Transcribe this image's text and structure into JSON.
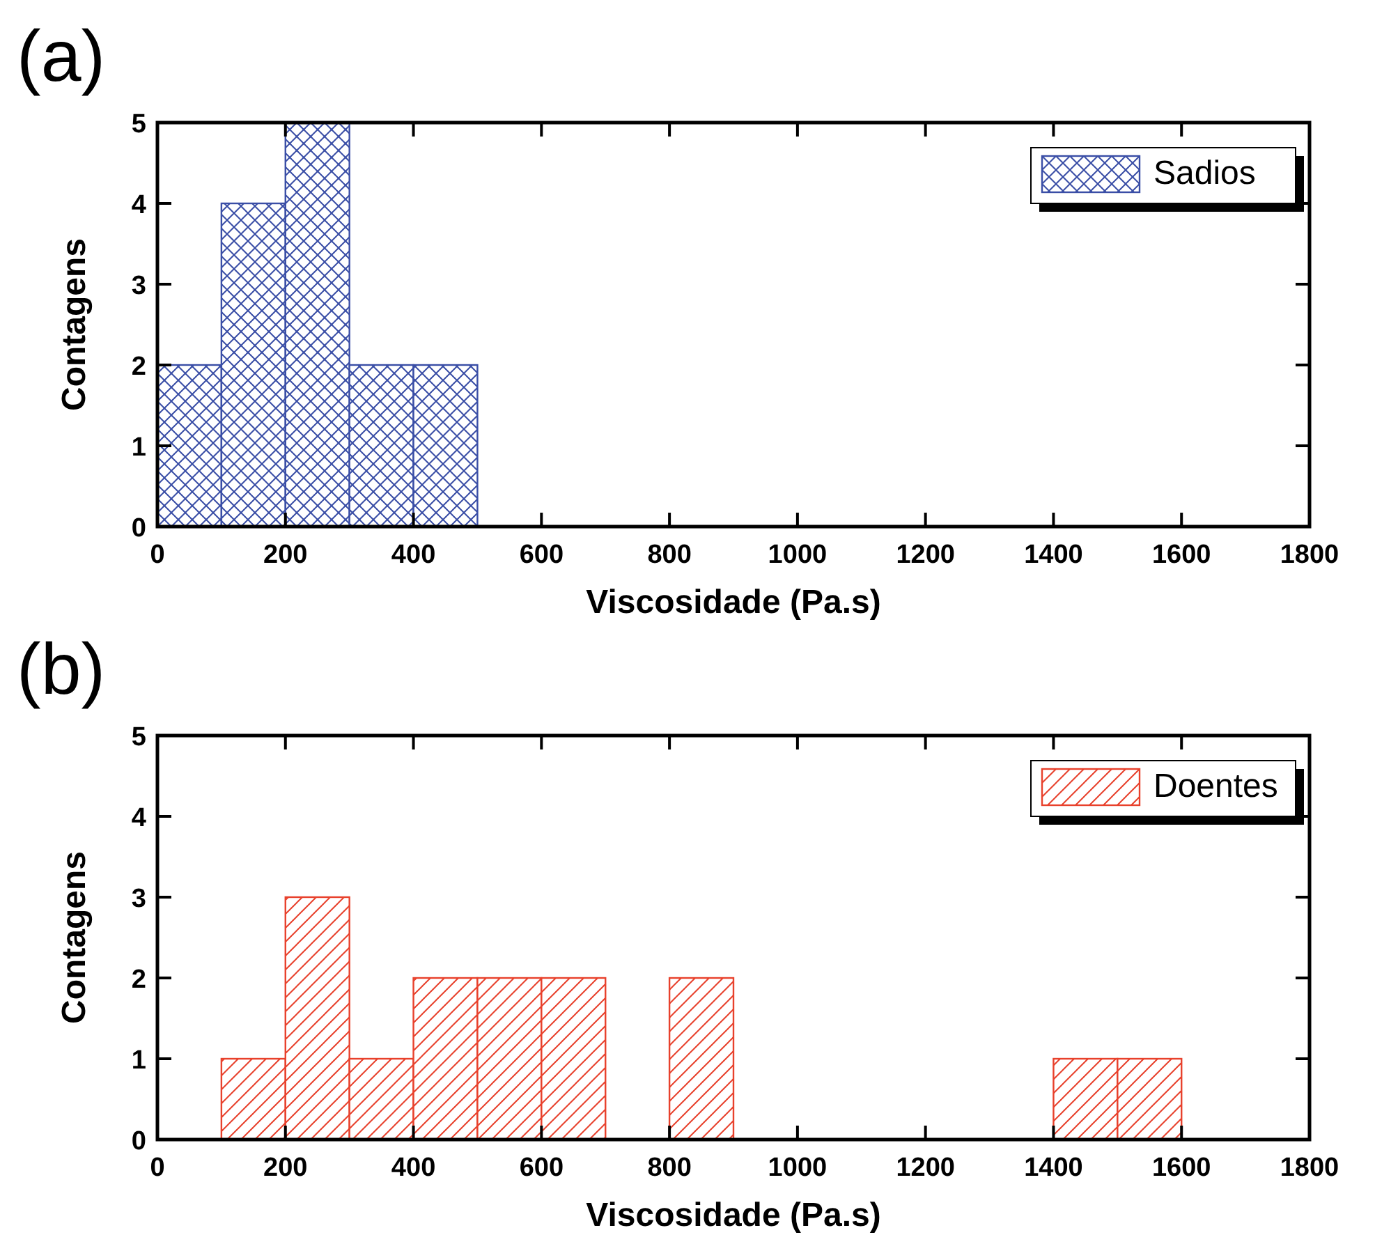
{
  "chart_data": [
    {
      "type": "histogram",
      "title": "(a)",
      "xlabel": "Viscosidade (Pa.s)",
      "ylabel": "Contagens",
      "bins": [
        0,
        100,
        200,
        300,
        400,
        500
      ],
      "series": [
        {
          "name": "Sadios",
          "color": "#3a4ea6",
          "values": [
            2,
            4,
            5,
            2,
            2
          ]
        }
      ],
      "xlim": [
        0,
        1800
      ],
      "xticks": [
        0,
        200,
        400,
        600,
        800,
        1000,
        1200,
        1400,
        1600,
        1800
      ],
      "ylim": [
        0,
        5
      ],
      "yticks": [
        0,
        1,
        2,
        3,
        4,
        5
      ],
      "legend": "top right",
      "grid": false
    },
    {
      "type": "histogram",
      "title": "(b)",
      "xlabel": "Viscosidade (Pa.s)",
      "ylabel": "Contagens",
      "bins": [
        100,
        200,
        300,
        400,
        500,
        600,
        700,
        800,
        900,
        1000,
        1100,
        1200,
        1300,
        1400,
        1500,
        1600
      ],
      "series": [
        {
          "name": "Doentes",
          "color": "#e8412c",
          "values": [
            1,
            3,
            1,
            2,
            2,
            2,
            0,
            2,
            0,
            0,
            0,
            0,
            0,
            1,
            1
          ]
        }
      ],
      "xlim": [
        0,
        1800
      ],
      "xticks": [
        0,
        200,
        400,
        600,
        800,
        1000,
        1200,
        1400,
        1600,
        1800
      ],
      "ylim": [
        0,
        5
      ],
      "yticks": [
        0,
        1,
        2,
        3,
        4,
        5
      ],
      "legend": "top right",
      "grid": false
    }
  ]
}
